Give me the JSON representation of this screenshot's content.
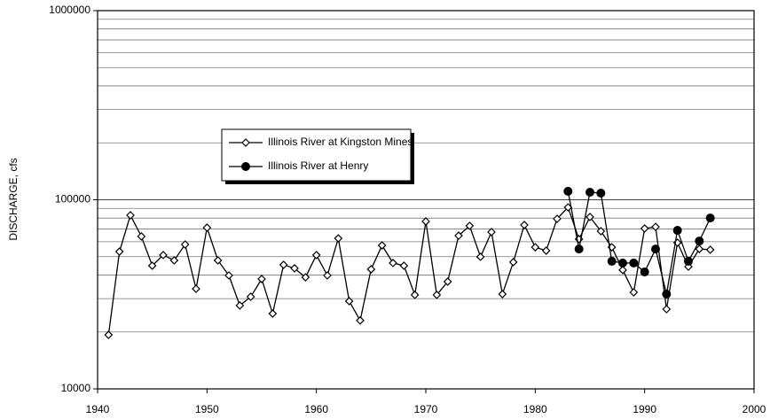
{
  "chart_data": {
    "type": "line",
    "ylabel": "DISCHARGE, cfs",
    "log_y": true,
    "grid": true,
    "legend": "upper left",
    "xlim": [
      1940,
      2000
    ],
    "xticks": [
      1940,
      1950,
      1960,
      1970,
      1980,
      1990,
      2000
    ],
    "ylim": [
      10000,
      1000000
    ],
    "yticks": [
      10000,
      100000,
      1000000
    ],
    "series": [
      {
        "name": "Illinois River at Kingston Mines",
        "color": "#000000",
        "marker": "diamond-open",
        "x": [
          1941,
          1942,
          1943,
          1944,
          1945,
          1946,
          1947,
          1948,
          1949,
          1950,
          1951,
          1952,
          1953,
          1954,
          1955,
          1956,
          1957,
          1958,
          1959,
          1960,
          1961,
          1962,
          1963,
          1964,
          1965,
          1966,
          1967,
          1968,
          1969,
          1970,
          1971,
          1972,
          1973,
          1974,
          1975,
          1976,
          1977,
          1978,
          1979,
          1980,
          1981,
          1982,
          1983,
          1984,
          1985,
          1986,
          1987,
          1988,
          1989,
          1990,
          1991,
          1992,
          1993,
          1994,
          1995,
          1996
        ],
        "values": [
          19300,
          53200,
          82800,
          64000,
          44800,
          51000,
          47800,
          58000,
          33800,
          71200,
          47800,
          39800,
          27600,
          30700,
          38100,
          25000,
          45300,
          43400,
          38900,
          51000,
          39800,
          62500,
          29100,
          23000,
          42900,
          57400,
          46300,
          44800,
          31400,
          76800,
          31400,
          36900,
          64600,
          72800,
          49900,
          67500,
          31700,
          46800,
          73600,
          56100,
          53800,
          79300,
          91200,
          61900,
          81100,
          68200,
          56100,
          42500,
          32400,
          70500,
          71900,
          26400,
          59300,
          44300,
          54900,
          54400
        ]
      },
      {
        "name": "Illinois River at Henry",
        "color": "#000000",
        "marker": "circle-filled",
        "x": [
          1983,
          1984,
          1985,
          1986,
          1987,
          1988,
          1989,
          1990,
          1991,
          1992,
          1993,
          1994,
          1995,
          1996
        ],
        "values": [
          110900,
          54900,
          109600,
          108400,
          47300,
          46300,
          46300,
          41500,
          54900,
          31700,
          68900,
          47300,
          60500,
          80100
        ]
      }
    ]
  }
}
